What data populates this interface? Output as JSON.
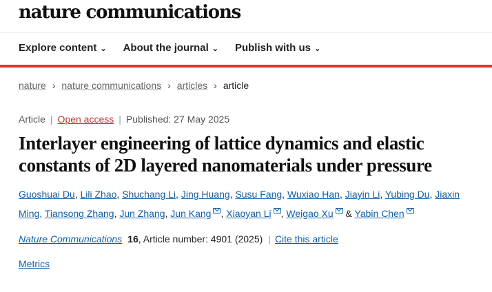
{
  "header": {
    "logo": "nature communications"
  },
  "nav": [
    {
      "label": "Explore content"
    },
    {
      "label": "About the journal"
    },
    {
      "label": "Publish with us"
    }
  ],
  "breadcrumb": {
    "items": [
      "nature",
      "nature communications",
      "articles"
    ],
    "current": "article"
  },
  "meta": {
    "type": "Article",
    "access": "Open access",
    "published": "Published: 27 May 2025"
  },
  "title": "Interlayer engineering of lattice dynamics and elastic constants of 2D layered nanomaterials under pressure",
  "authors": [
    {
      "name": "Guoshuai Du",
      "email": false
    },
    {
      "name": "Lili Zhao",
      "email": false
    },
    {
      "name": "Shuchang Li",
      "email": false
    },
    {
      "name": "Jing Huang",
      "email": false
    },
    {
      "name": "Susu Fang",
      "email": false
    },
    {
      "name": "Wuxiao Han",
      "email": false
    },
    {
      "name": "Jiayin Li",
      "email": false
    },
    {
      "name": "Yubing Du",
      "email": false
    },
    {
      "name": "Jiaxin Ming",
      "email": false
    },
    {
      "name": "Tiansong Zhang",
      "email": false
    },
    {
      "name": "Jun Zhang",
      "email": false
    },
    {
      "name": "Jun Kang",
      "email": true
    },
    {
      "name": "Xiaoyan Li",
      "email": true
    },
    {
      "name": "Weigao Xu",
      "email": true
    },
    {
      "name": "Yabin Chen",
      "email": true
    }
  ],
  "citation": {
    "journal": "Nature Communications",
    "volume": "16",
    "article_number": ", Article number: 4901 (2025)",
    "cite_label": "Cite this article"
  },
  "metrics_label": "Metrics",
  "colors": {
    "accent_red": "#e0302a",
    "link_blue": "#0f5ea8"
  }
}
